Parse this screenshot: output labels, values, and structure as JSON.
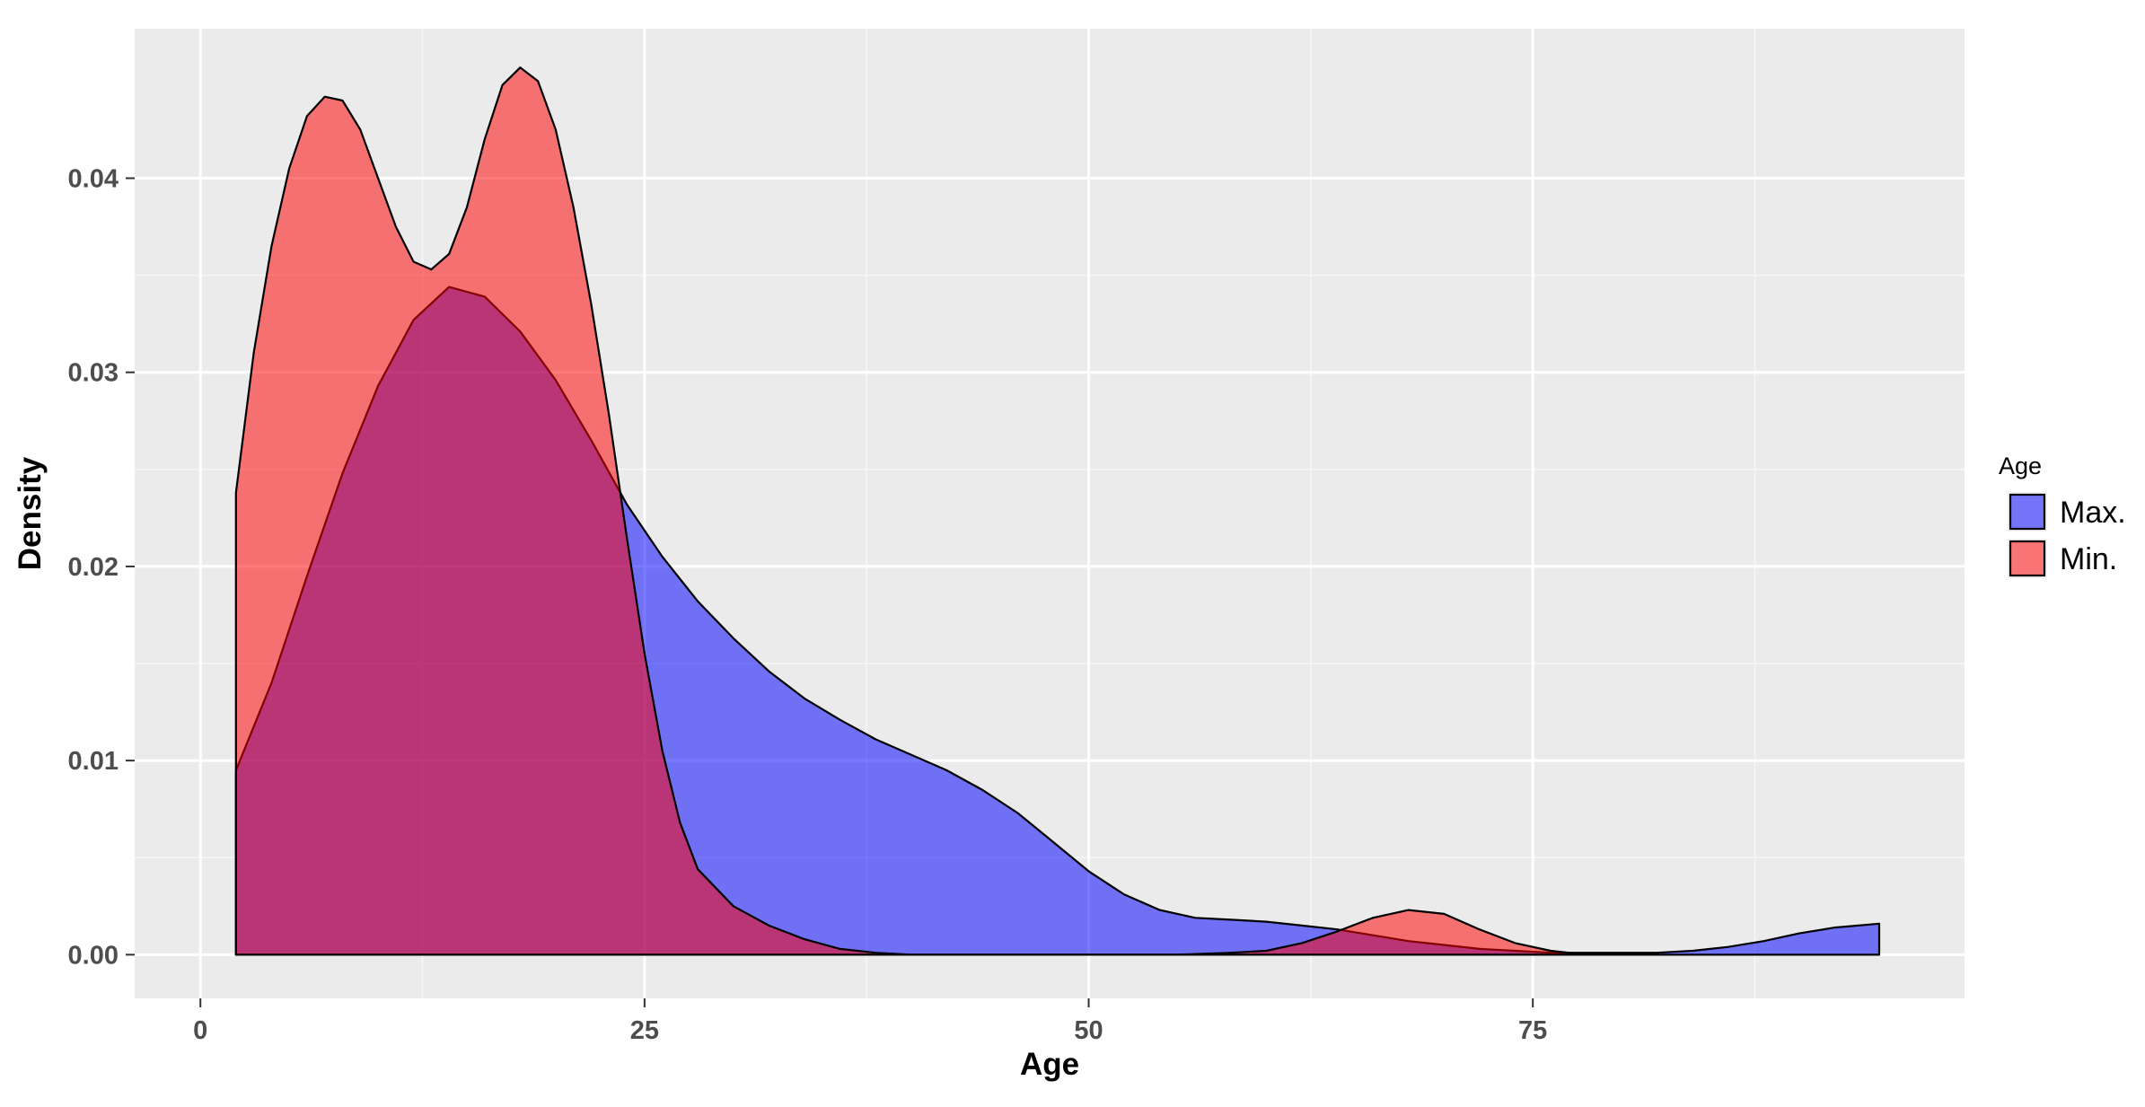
{
  "chart_data": {
    "type": "area",
    "title": "",
    "xlabel": "Age",
    "ylabel": "Density",
    "xlim": [
      -3.7,
      99.3
    ],
    "ylim": [
      -0.00225,
      0.0477
    ],
    "x_ticks": [
      0,
      25,
      50,
      75
    ],
    "x_tick_labels": [
      "0",
      "25",
      "50",
      "75"
    ],
    "y_ticks": [
      0.0,
      0.01,
      0.02,
      0.03,
      0.04
    ],
    "y_tick_labels": [
      "0.00",
      "0.01",
      "0.02",
      "0.03",
      "0.04"
    ],
    "grid": true,
    "legend": {
      "title": "Age",
      "placement": "right"
    },
    "series": [
      {
        "name": "Max.",
        "color": "#0000ff",
        "fill_opacity": 0.52,
        "points": [
          [
            2,
            0.0095
          ],
          [
            4,
            0.014
          ],
          [
            6,
            0.0195
          ],
          [
            8,
            0.0248
          ],
          [
            10,
            0.0293
          ],
          [
            12,
            0.0327
          ],
          [
            14,
            0.0344
          ],
          [
            16,
            0.0339
          ],
          [
            18,
            0.0321
          ],
          [
            20,
            0.0296
          ],
          [
            22,
            0.0265
          ],
          [
            24,
            0.0232
          ],
          [
            26,
            0.0205
          ],
          [
            28,
            0.0182
          ],
          [
            30,
            0.0163
          ],
          [
            32,
            0.0146
          ],
          [
            34,
            0.0132
          ],
          [
            36,
            0.0121
          ],
          [
            38,
            0.0111
          ],
          [
            40,
            0.0103
          ],
          [
            42,
            0.0095
          ],
          [
            44,
            0.0085
          ],
          [
            46,
            0.0073
          ],
          [
            48,
            0.0058
          ],
          [
            50,
            0.0043
          ],
          [
            52,
            0.0031
          ],
          [
            54,
            0.0023
          ],
          [
            56,
            0.0019
          ],
          [
            58,
            0.0018
          ],
          [
            60,
            0.0017
          ],
          [
            62,
            0.0015
          ],
          [
            64,
            0.0013
          ],
          [
            66,
            0.001
          ],
          [
            68,
            0.0007
          ],
          [
            70,
            0.0005
          ],
          [
            72,
            0.0003
          ],
          [
            74,
            0.0002
          ],
          [
            76,
            0.0001
          ],
          [
            78,
            0.0001
          ],
          [
            80,
            0.0001
          ],
          [
            82,
            0.0001
          ],
          [
            84,
            0.0002
          ],
          [
            86,
            0.0004
          ],
          [
            88,
            0.0007
          ],
          [
            90,
            0.0011
          ],
          [
            92,
            0.0014
          ],
          [
            94.5,
            0.0016
          ]
        ]
      },
      {
        "name": "Min.",
        "color": "#ff0000",
        "fill_opacity": 0.52,
        "points": [
          [
            2,
            0.0238
          ],
          [
            3,
            0.031
          ],
          [
            4,
            0.0365
          ],
          [
            5,
            0.0405
          ],
          [
            6,
            0.0432
          ],
          [
            7,
            0.0442
          ],
          [
            8,
            0.044
          ],
          [
            9,
            0.0425
          ],
          [
            10,
            0.04
          ],
          [
            11,
            0.0375
          ],
          [
            12,
            0.0357
          ],
          [
            13,
            0.0353
          ],
          [
            14,
            0.0361
          ],
          [
            15,
            0.0385
          ],
          [
            16,
            0.042
          ],
          [
            17,
            0.0448
          ],
          [
            18,
            0.0457
          ],
          [
            19,
            0.045
          ],
          [
            20,
            0.0425
          ],
          [
            21,
            0.0385
          ],
          [
            22,
            0.0335
          ],
          [
            23,
            0.0278
          ],
          [
            24,
            0.0215
          ],
          [
            25,
            0.0155
          ],
          [
            26,
            0.0105
          ],
          [
            27,
            0.0068
          ],
          [
            28,
            0.0044
          ],
          [
            30,
            0.0025
          ],
          [
            32,
            0.0015
          ],
          [
            34,
            0.0008
          ],
          [
            36,
            0.0003
          ],
          [
            38,
            0.0001
          ],
          [
            40,
            0.0
          ],
          [
            45,
            0.0
          ],
          [
            50,
            0.0
          ],
          [
            55,
            0.0
          ],
          [
            58,
            0.0001
          ],
          [
            60,
            0.0002
          ],
          [
            62,
            0.0006
          ],
          [
            64,
            0.0012
          ],
          [
            66,
            0.0019
          ],
          [
            68,
            0.0023
          ],
          [
            70,
            0.0021
          ],
          [
            72,
            0.0013
          ],
          [
            74,
            0.0006
          ],
          [
            76,
            0.0002
          ],
          [
            78,
            0.0
          ],
          [
            80,
            0.0
          ]
        ]
      }
    ]
  }
}
